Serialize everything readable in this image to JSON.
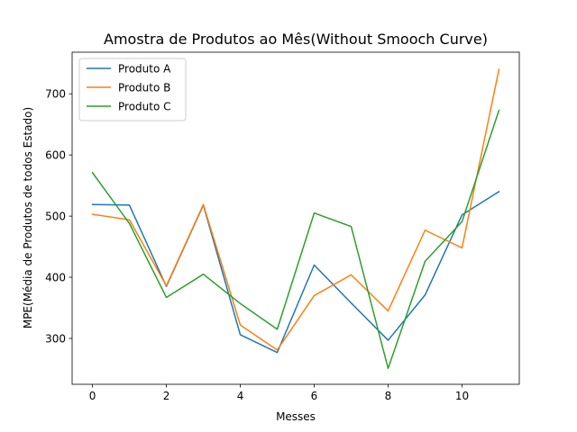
{
  "chart_data": {
    "type": "line",
    "title": "Amostra de Produtos ao Mês(Without Smooch Curve)",
    "xlabel": "Messes",
    "ylabel": "MPE(Média de Produtos de todos Estado)",
    "xlim": [
      -0.55,
      11.55
    ],
    "ylim": [
      225,
      768
    ],
    "xticks": [
      0,
      2,
      4,
      6,
      8,
      10
    ],
    "yticks": [
      300,
      400,
      500,
      600,
      700
    ],
    "grid": false,
    "legend_position": "top-left",
    "x": [
      0,
      1,
      2,
      3,
      4,
      5,
      6,
      7,
      8,
      9,
      10,
      11
    ],
    "series": [
      {
        "name": "Produto A",
        "color": "#1f77b4",
        "values": [
          519,
          518,
          385,
          518,
          306,
          277,
          420,
          358,
          297,
          371,
          502,
          540
        ]
      },
      {
        "name": "Produto B",
        "color": "#ff7f0e",
        "values": [
          503,
          494,
          386,
          519,
          322,
          281,
          370,
          404,
          345,
          477,
          448,
          740
        ]
      },
      {
        "name": "Produto C",
        "color": "#2ca02c",
        "values": [
          571,
          488,
          367,
          405,
          357,
          315,
          505,
          483,
          251,
          426,
          491,
          673
        ]
      }
    ]
  }
}
